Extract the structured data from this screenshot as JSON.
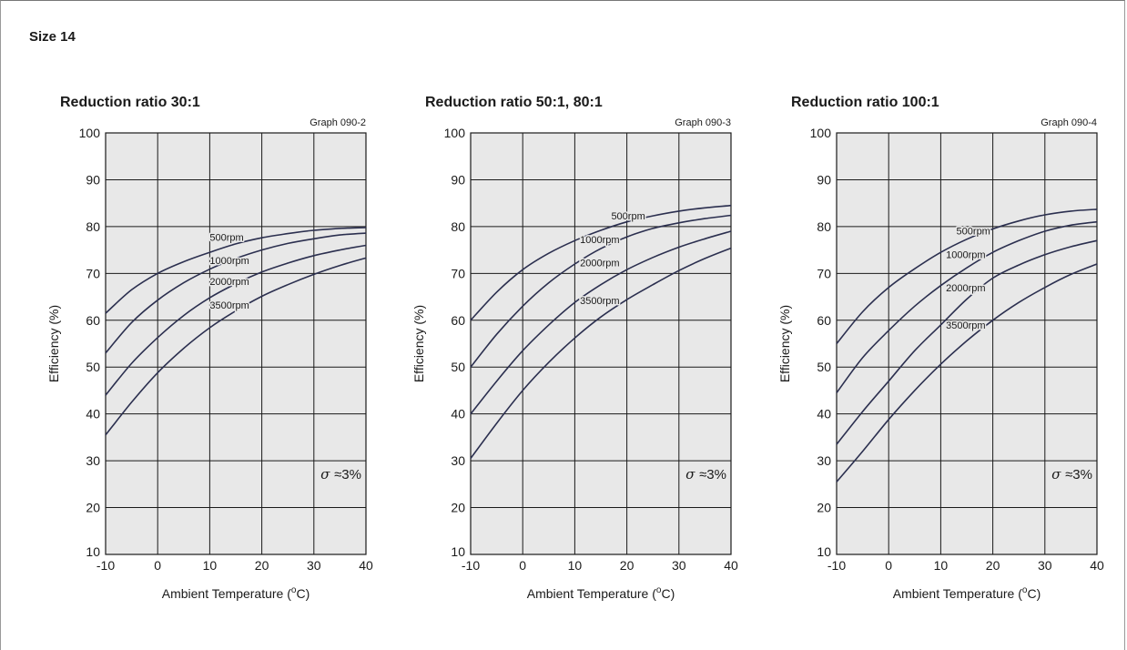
{
  "page": {
    "title": "Size 14"
  },
  "colors": {
    "plot_bg": "#e8e8e8",
    "curve": "#2b2f4f",
    "grid": "#1a1a1a"
  },
  "chart_data": [
    {
      "type": "line",
      "title": "Reduction ratio 30:1",
      "graph_id": "Graph 090-2",
      "xlabel": "Ambient Temperature",
      "xunit": "o",
      "xunit_suffix": "C)",
      "ylabel": "Efficiency (%)",
      "xlim": [
        -10,
        40
      ],
      "ylim": [
        10,
        100
      ],
      "xticks": [
        -10,
        0,
        10,
        20,
        30,
        40
      ],
      "yticks": [
        10,
        20,
        30,
        40,
        50,
        60,
        70,
        80,
        90,
        100
      ],
      "grid": true,
      "note_symbol": "σ",
      "note_text": "≈3%",
      "x": [
        -10,
        -5,
        0,
        5,
        10,
        15,
        20,
        25,
        30,
        35,
        40
      ],
      "series": [
        {
          "name": "500rpm",
          "label_at": [
            10,
            77
          ],
          "values": [
            61.5,
            66.5,
            70.0,
            72.5,
            74.5,
            76.3,
            77.6,
            78.5,
            79.2,
            79.6,
            79.8
          ]
        },
        {
          "name": "1000rpm",
          "label_at": [
            10,
            72
          ],
          "values": [
            53.0,
            59.5,
            64.3,
            68.0,
            70.9,
            73.2,
            75.0,
            76.4,
            77.4,
            78.2,
            78.6
          ]
        },
        {
          "name": "2000rpm",
          "label_at": [
            10,
            67.5
          ],
          "values": [
            44.0,
            50.8,
            56.3,
            61.0,
            64.8,
            67.8,
            70.3,
            72.2,
            73.8,
            75.0,
            76.0
          ]
        },
        {
          "name": "3500rpm",
          "label_at": [
            10,
            62.5
          ],
          "values": [
            35.5,
            42.5,
            48.8,
            54.0,
            58.4,
            62.0,
            65.1,
            67.6,
            69.8,
            71.7,
            73.3
          ]
        }
      ]
    },
    {
      "type": "line",
      "title": "Reduction ratio 50:1, 80:1",
      "graph_id": "Graph 090-3",
      "xlabel": "Ambient Temperature",
      "xunit": "o",
      "xunit_suffix": "C)",
      "ylabel": "Efficiency (%)",
      "xlim": [
        -10,
        40
      ],
      "ylim": [
        10,
        100
      ],
      "xticks": [
        -10,
        0,
        10,
        20,
        30,
        40
      ],
      "yticks": [
        10,
        20,
        30,
        40,
        50,
        60,
        70,
        80,
        90,
        100
      ],
      "grid": true,
      "note_symbol": "σ",
      "note_text": "≈3%",
      "x": [
        -10,
        -5,
        0,
        5,
        10,
        15,
        20,
        25,
        30,
        35,
        40
      ],
      "series": [
        {
          "name": "500rpm",
          "label_at": [
            17,
            81.5
          ],
          "values": [
            60.0,
            66.0,
            70.8,
            74.3,
            77.0,
            79.2,
            81.0,
            82.3,
            83.3,
            84.0,
            84.5
          ]
        },
        {
          "name": "1000rpm",
          "label_at": [
            11,
            76.5
          ],
          "values": [
            50.0,
            57.0,
            63.0,
            68.0,
            72.0,
            75.3,
            77.8,
            79.6,
            80.8,
            81.7,
            82.4
          ]
        },
        {
          "name": "2000rpm",
          "label_at": [
            11,
            71.5
          ],
          "values": [
            40.0,
            47.0,
            53.5,
            59.0,
            63.8,
            67.6,
            70.8,
            73.4,
            75.6,
            77.4,
            79.0
          ]
        },
        {
          "name": "3500rpm",
          "label_at": [
            11,
            63.5
          ],
          "values": [
            30.5,
            38.0,
            45.0,
            51.0,
            56.2,
            60.7,
            64.4,
            67.6,
            70.6,
            73.2,
            75.4
          ]
        }
      ]
    },
    {
      "type": "line",
      "title": "Reduction ratio 100:1",
      "graph_id": "Graph 090-4",
      "xlabel": "Ambient Temperature",
      "xunit": "o",
      "xunit_suffix": "C)",
      "ylabel": "Efficiency (%)",
      "xlim": [
        -10,
        40
      ],
      "ylim": [
        10,
        100
      ],
      "xticks": [
        -10,
        0,
        10,
        20,
        30,
        40
      ],
      "yticks": [
        10,
        20,
        30,
        40,
        50,
        60,
        70,
        80,
        90,
        100
      ],
      "grid": true,
      "note_symbol": "σ",
      "note_text": "≈3%",
      "x": [
        -10,
        -5,
        0,
        5,
        10,
        15,
        20,
        25,
        30,
        35,
        40
      ],
      "series": [
        {
          "name": "500rpm",
          "label_at": [
            13,
            78.3
          ],
          "values": [
            55.0,
            61.8,
            67.0,
            71.0,
            74.5,
            77.3,
            79.5,
            81.2,
            82.5,
            83.3,
            83.7
          ]
        },
        {
          "name": "1000rpm",
          "label_at": [
            11,
            73.3
          ],
          "values": [
            44.5,
            52.0,
            57.8,
            63.0,
            67.4,
            71.2,
            74.5,
            77.0,
            79.0,
            80.3,
            81.0
          ]
        },
        {
          "name": "2000rpm",
          "label_at": [
            11,
            66.2
          ],
          "values": [
            33.5,
            40.5,
            47.0,
            53.5,
            59.0,
            64.5,
            69.0,
            71.8,
            74.0,
            75.7,
            77.0
          ]
        },
        {
          "name": "3500rpm",
          "label_at": [
            11,
            58.2
          ],
          "values": [
            25.5,
            32.0,
            38.8,
            45.0,
            50.6,
            55.6,
            60.0,
            63.8,
            67.0,
            69.8,
            72.0
          ]
        }
      ]
    }
  ]
}
